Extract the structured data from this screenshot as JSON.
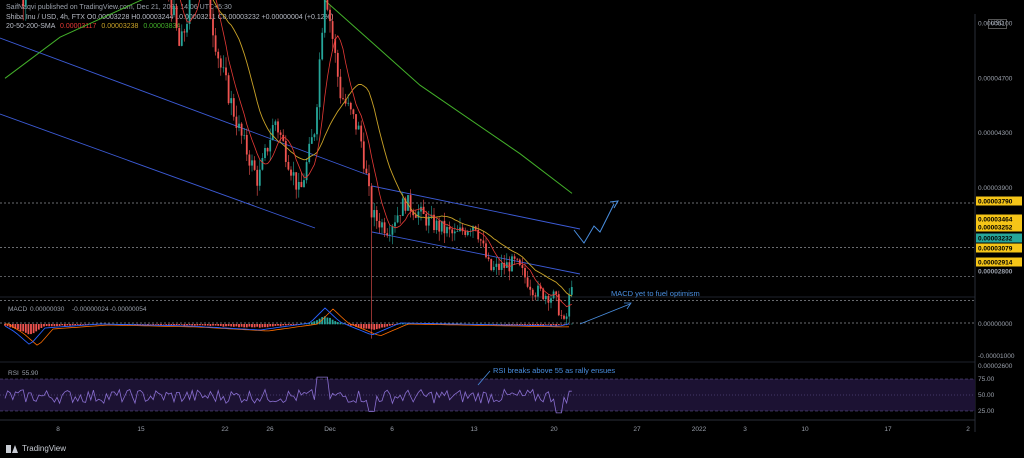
{
  "header": {
    "publisher": "SaifNaqvi published on TradingView.com, Dec 21, 2021 14:06 UTC+5:30",
    "symbol_line": "Shiba Inu / USD, 4h, FTX  O0.00003228  H0.00003244  L0.00003211  C0.00003232  +0.00000004 (+0.12%)",
    "sma_label": "20-50-200-SMA",
    "sma_values": [
      "0.00003117",
      "0.00003238",
      "0.00003834"
    ],
    "currency": "USD"
  },
  "colors": {
    "up": "#26a69a",
    "down": "#ef5350",
    "sma20": "#e53935",
    "sma50": "#c9a227",
    "sma200": "#43b02a",
    "channel": "#3c5bd6",
    "annotation": "#4a8fe0",
    "rsi": "#8a6fd1",
    "macd": "#2962ff",
    "signal": "#ff6d00"
  },
  "chart_data": [
    {
      "type": "candlestick",
      "title": "Shiba Inu / USD, 4h, FTX",
      "price_axis_ticks": [
        "0.00007500",
        "0.00007000",
        "0.00006500",
        "0.00006000",
        "0.00005500",
        "0.00005100",
        "0.00004700",
        "0.00004300",
        "0.00003900",
        "0.00002600"
      ],
      "price_labels": [
        {
          "value": "0.00003790",
          "bg": "#f5c518",
          "fg": "#000"
        },
        {
          "value": "0.00003464",
          "bg": "#f5c518",
          "fg": "#000"
        },
        {
          "value": "0.00003252",
          "bg": "#f5c518",
          "fg": "#000"
        },
        {
          "value": "0.00003232",
          "bg": "#26a69a",
          "fg": "#000"
        },
        {
          "value": "0.00003079",
          "bg": "#f5c518",
          "fg": "#000"
        },
        {
          "value": "0.00002914",
          "bg": "#f5c518",
          "fg": "#000"
        },
        {
          "value": "0.00002800",
          "bg": "#000",
          "fg": "#9aa0ab"
        }
      ],
      "x_tick_labels": [
        "8",
        "15",
        "22",
        "26",
        "Dec",
        "6",
        "13",
        "20",
        "27",
        "2022",
        "3",
        "10",
        "17",
        "2"
      ],
      "sma20_last": 3.117e-05,
      "sma50_last": 3.238e-05,
      "sma200_last": 3.834e-05
    },
    {
      "type": "line",
      "title": "MACD",
      "values_label": "MACD  0.00000030  -0.00000024  -0.00000054",
      "values": [
        "0.00000030",
        "-0.00000024",
        "-0.00000054"
      ],
      "axis_ticks": [
        "0.00000000",
        "-0.00001000"
      ],
      "annotation": "MACD yet to fuel optimism"
    },
    {
      "type": "line",
      "title": "RSI",
      "value": "55.90",
      "axis_ticks": [
        "75.00",
        "50.00",
        "25.00"
      ],
      "band": [
        25,
        75
      ],
      "annotation": "RSI breaks above 55 as rally ensues"
    }
  ],
  "footer": {
    "brand": "TradingView"
  }
}
